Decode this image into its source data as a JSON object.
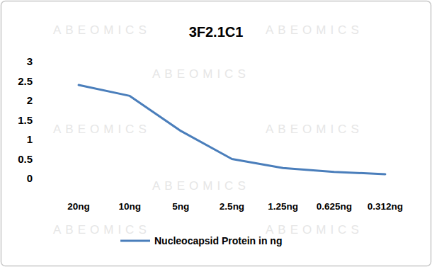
{
  "chart_data": {
    "type": "line",
    "title": "3F2.1C1",
    "watermark": "ABEOMICS",
    "categories": [
      "20ng",
      "10ng",
      "5ng",
      "2.5ng",
      "1.25ng",
      "0.625ng",
      "0.312ng"
    ],
    "series": [
      {
        "name": "Nucleocapsid Protein in ng",
        "color": "#4a7ebb",
        "values": [
          2.4,
          2.12,
          1.22,
          0.5,
          0.27,
          0.17,
          0.11
        ]
      }
    ],
    "ylim": [
      0,
      3
    ],
    "yticks": [
      0,
      0.5,
      1,
      1.5,
      2,
      2.5,
      3
    ],
    "grid": false,
    "legend": "bottom"
  }
}
